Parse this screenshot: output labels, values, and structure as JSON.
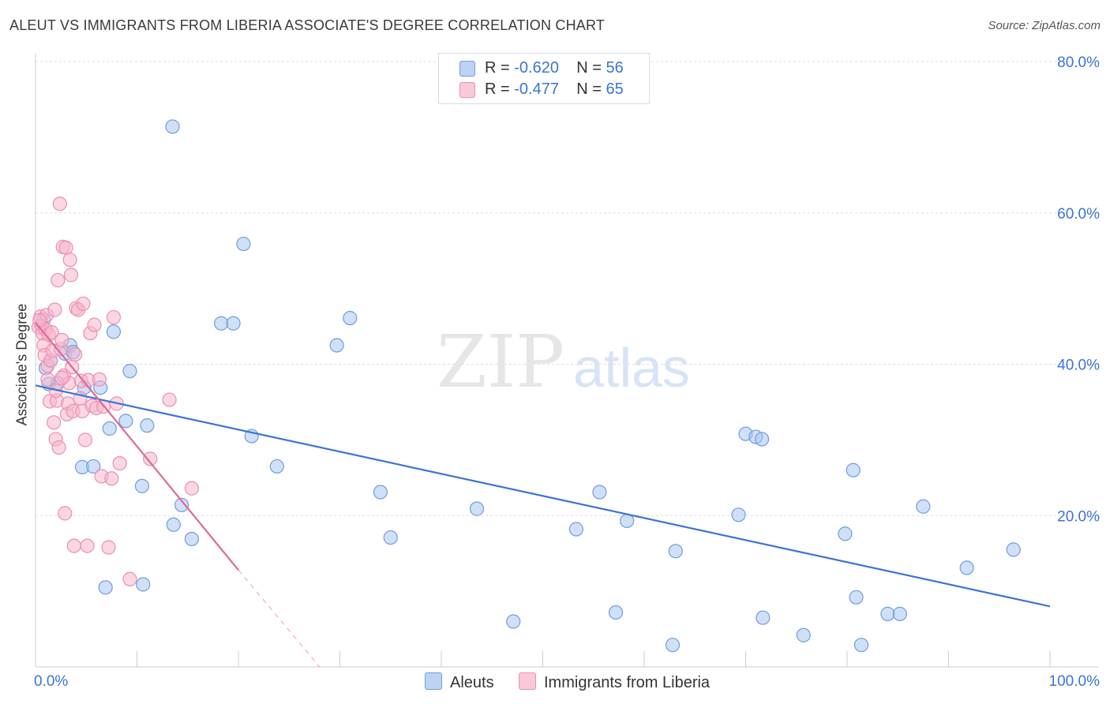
{
  "title": "ALEUT VS IMMIGRANTS FROM LIBERIA ASSOCIATE'S DEGREE CORRELATION CHART",
  "source": "Source: ZipAtlas.com",
  "watermark": {
    "zip": "ZIP",
    "atlas": "atlas"
  },
  "legend": {
    "rows": [
      {
        "r_label": "R = ",
        "r_value": "-0.620",
        "n_label": "N = ",
        "n_value": "56"
      },
      {
        "r_label": "R = ",
        "r_value": "-0.477",
        "n_label": "N = ",
        "n_value": "65"
      }
    ]
  },
  "bottom_legend": {
    "aleuts": "Aleuts",
    "liberia": "Immigrants from Liberia"
  },
  "colors": {
    "blue": "#3b74d4",
    "blue_fill": "#a9c6ef",
    "pink": "#e0679a",
    "pink_fill": "#f5b6cc"
  },
  "chart_data": {
    "type": "scatter",
    "title": "ALEUT VS IMMIGRANTS FROM LIBERIA ASSOCIATE'S DEGREE CORRELATION CHART",
    "xlabel": "",
    "ylabel": "Associate's Degree",
    "xlim": [
      0,
      100
    ],
    "ylim": [
      0,
      80
    ],
    "x_tick_labels": [
      "0.0%",
      "100.0%"
    ],
    "y_ticks": [
      20,
      40,
      60,
      80
    ],
    "y_tick_labels": [
      "20.0%",
      "40.0%",
      "60.0%",
      "80.0%"
    ],
    "grid": true,
    "series": [
      {
        "name": "Aleuts",
        "color": "#3b74d4",
        "R": -0.62,
        "N": 56,
        "trend": {
          "x0": 0,
          "y0": 37.2,
          "x1": 100,
          "y1": 8.0
        },
        "points": [
          [
            0.8,
            45.9
          ],
          [
            1.0,
            39.5
          ],
          [
            1.3,
            37.4
          ],
          [
            2.2,
            37.5
          ],
          [
            2.9,
            41.4
          ],
          [
            3.4,
            42.5
          ],
          [
            3.7,
            41.6
          ],
          [
            4.6,
            26.4
          ],
          [
            4.8,
            36.9
          ],
          [
            5.7,
            26.5
          ],
          [
            6.4,
            36.9
          ],
          [
            6.9,
            10.5
          ],
          [
            7.3,
            31.5
          ],
          [
            7.7,
            44.3
          ],
          [
            8.9,
            32.5
          ],
          [
            9.3,
            39.1
          ],
          [
            10.5,
            23.9
          ],
          [
            10.6,
            10.9
          ],
          [
            11.0,
            31.9
          ],
          [
            13.5,
            71.4
          ],
          [
            13.6,
            18.8
          ],
          [
            14.4,
            21.4
          ],
          [
            15.4,
            16.9
          ],
          [
            18.3,
            45.4
          ],
          [
            19.5,
            45.4
          ],
          [
            20.5,
            55.9
          ],
          [
            21.3,
            30.5
          ],
          [
            23.8,
            26.5
          ],
          [
            29.7,
            42.5
          ],
          [
            31.0,
            46.1
          ],
          [
            34.0,
            23.1
          ],
          [
            35.0,
            17.1
          ],
          [
            43.5,
            20.9
          ],
          [
            47.1,
            6.0
          ],
          [
            53.3,
            18.2
          ],
          [
            55.6,
            23.1
          ],
          [
            57.2,
            7.2
          ],
          [
            58.3,
            19.3
          ],
          [
            62.8,
            2.9
          ],
          [
            63.1,
            15.3
          ],
          [
            69.3,
            20.1
          ],
          [
            70.0,
            30.8
          ],
          [
            71.0,
            30.4
          ],
          [
            71.6,
            30.1
          ],
          [
            71.7,
            6.5
          ],
          [
            75.7,
            4.2
          ],
          [
            79.8,
            17.6
          ],
          [
            80.6,
            26.0
          ],
          [
            80.9,
            9.2
          ],
          [
            81.4,
            2.9
          ],
          [
            84.0,
            7.0
          ],
          [
            85.2,
            7.0
          ],
          [
            87.5,
            21.2
          ],
          [
            91.8,
            13.1
          ],
          [
            96.4,
            15.5
          ],
          [
            1.5,
            40.5
          ]
        ]
      },
      {
        "name": "Immigrants from Liberia",
        "color": "#e0679a",
        "R": -0.477,
        "N": 65,
        "trend": {
          "x0": 0,
          "y0": 45.5,
          "x1": 20,
          "y1": 12.8
        },
        "trend_extension": {
          "x0": 20,
          "y0": 12.8,
          "x1": 28.0,
          "y1": 0.0
        },
        "points": [
          [
            0.3,
            44.9
          ],
          [
            0.5,
            46.3
          ],
          [
            0.6,
            45.1
          ],
          [
            0.7,
            44.1
          ],
          [
            0.8,
            42.5
          ],
          [
            0.9,
            41.2
          ],
          [
            1.0,
            44.6
          ],
          [
            1.1,
            46.5
          ],
          [
            1.2,
            39.8
          ],
          [
            1.3,
            43.9
          ],
          [
            1.4,
            35.1
          ],
          [
            1.5,
            40.5
          ],
          [
            1.6,
            44.2
          ],
          [
            1.7,
            41.8
          ],
          [
            1.8,
            32.3
          ],
          [
            1.9,
            47.2
          ],
          [
            2.0,
            30.1
          ],
          [
            2.1,
            35.2
          ],
          [
            2.2,
            51.1
          ],
          [
            2.3,
            29.0
          ],
          [
            2.4,
            61.2
          ],
          [
            2.5,
            42.0
          ],
          [
            2.6,
            43.2
          ],
          [
            2.7,
            55.5
          ],
          [
            2.8,
            38.5
          ],
          [
            2.9,
            20.3
          ],
          [
            3.0,
            55.4
          ],
          [
            3.1,
            33.4
          ],
          [
            3.2,
            34.8
          ],
          [
            3.3,
            37.5
          ],
          [
            3.4,
            53.8
          ],
          [
            3.5,
            51.8
          ],
          [
            3.6,
            39.6
          ],
          [
            3.7,
            33.8
          ],
          [
            3.8,
            16.0
          ],
          [
            4.0,
            47.4
          ],
          [
            4.2,
            47.2
          ],
          [
            4.4,
            35.5
          ],
          [
            4.5,
            37.8
          ],
          [
            4.6,
            33.8
          ],
          [
            4.7,
            48.0
          ],
          [
            4.9,
            30.0
          ],
          [
            5.1,
            16.0
          ],
          [
            5.2,
            37.9
          ],
          [
            5.4,
            44.1
          ],
          [
            5.6,
            34.5
          ],
          [
            5.8,
            45.2
          ],
          [
            6.0,
            34.2
          ],
          [
            6.3,
            38.0
          ],
          [
            6.5,
            25.2
          ],
          [
            6.7,
            34.4
          ],
          [
            7.2,
            15.8
          ],
          [
            7.5,
            24.9
          ],
          [
            7.7,
            46.2
          ],
          [
            8.0,
            34.8
          ],
          [
            8.3,
            26.9
          ],
          [
            9.3,
            11.6
          ],
          [
            11.3,
            27.5
          ],
          [
            13.2,
            35.3
          ],
          [
            15.4,
            23.6
          ],
          [
            1.2,
            38.0
          ],
          [
            2.0,
            36.5
          ],
          [
            0.4,
            45.8
          ],
          [
            3.9,
            41.3
          ],
          [
            2.6,
            38.2
          ]
        ]
      }
    ]
  }
}
